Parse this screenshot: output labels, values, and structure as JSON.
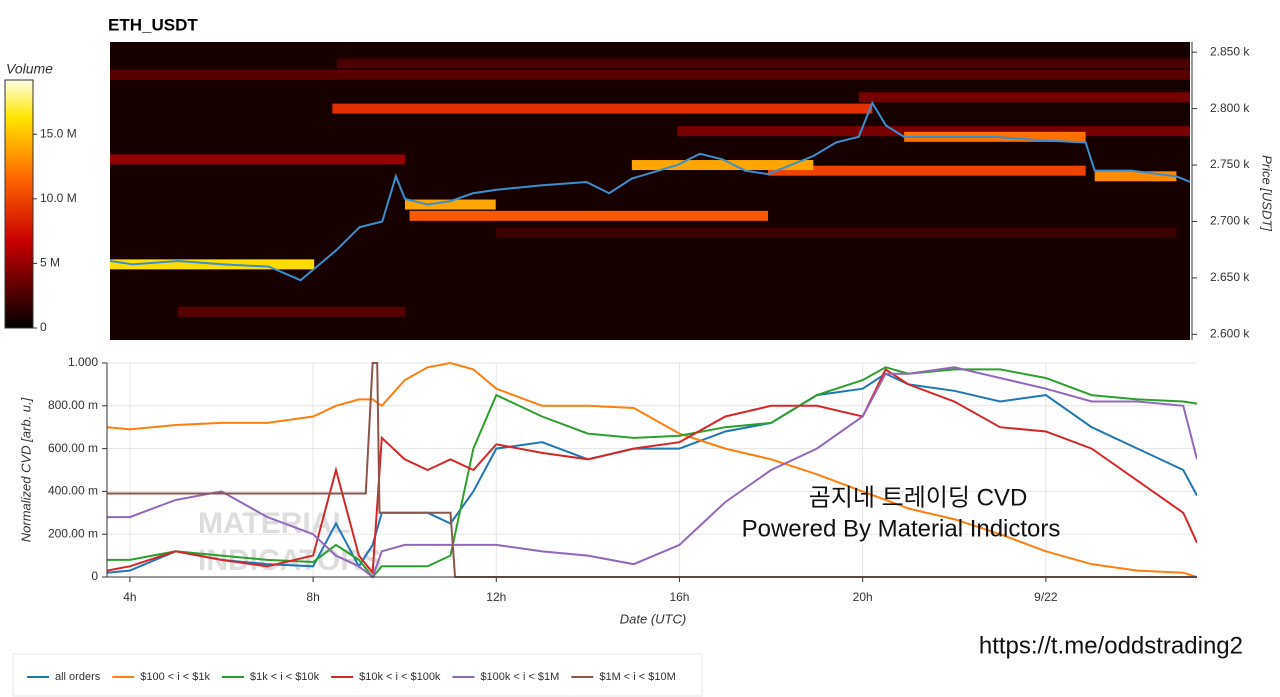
{
  "chart_data": [
    {
      "type": "heatmap",
      "title": "ETH_USDT",
      "y_label": "Price [USDT]",
      "xlim": [
        3.5,
        27.3
      ],
      "ylim": [
        2595,
        2859
      ],
      "yticks": [
        {
          "value": 2600,
          "label": "2.600 k"
        },
        {
          "value": 2650,
          "label": "2.650 k"
        },
        {
          "value": 2700,
          "label": "2.700 k"
        },
        {
          "value": 2750,
          "label": "2.750 k"
        },
        {
          "value": 2800,
          "label": "2.800 k"
        },
        {
          "value": 2850,
          "label": "2.850 k"
        }
      ],
      "colorbar": {
        "title": "Volume",
        "clim": [
          0,
          19.2
        ],
        "ticks": [
          0,
          {
            "value": 5,
            "label": "5 M"
          },
          {
            "value": 10,
            "label": "10.0 M"
          },
          {
            "value": 15,
            "label": "15.0 M"
          }
        ]
      },
      "levels": [
        {
          "price": 2840,
          "start": 8.5,
          "end": 27.3,
          "volume": 2.5
        },
        {
          "price": 2830,
          "start": 3.5,
          "end": 27.3,
          "volume": 3
        },
        {
          "price": 2810,
          "start": 20,
          "end": 27.3,
          "volume": 4
        },
        {
          "price": 2780,
          "start": 16,
          "end": 27.3,
          "volume": 4
        },
        {
          "price": 2755,
          "start": 3.5,
          "end": 10,
          "volume": 5
        },
        {
          "price": 2690,
          "start": 12,
          "end": 27,
          "volume": 2
        },
        {
          "price": 2620,
          "start": 5,
          "end": 10,
          "volume": 3
        },
        {
          "price": 2800,
          "start": 8.4,
          "end": 20.3,
          "volume": 9
        },
        {
          "price": 2745,
          "start": 18,
          "end": 25,
          "volume": 10
        },
        {
          "price": 2705,
          "start": 10.1,
          "end": 18,
          "volume": 11
        },
        {
          "price": 2662,
          "start": 3.5,
          "end": 8,
          "volume": 16
        },
        {
          "price": 2715,
          "start": 10,
          "end": 12,
          "volume": 14
        },
        {
          "price": 2750,
          "start": 15,
          "end": 19,
          "volume": 14
        },
        {
          "price": 2775,
          "start": 21,
          "end": 25,
          "volume": 12
        },
        {
          "price": 2740,
          "start": 25.2,
          "end": 27,
          "volume": 13
        }
      ],
      "price": {
        "color": "#3b8fd0",
        "x": [
          3.5,
          4,
          5,
          6,
          7,
          7.7,
          8,
          8.5,
          9,
          9.5,
          9.8,
          10,
          10.5,
          11,
          11.5,
          12,
          13,
          14,
          14.5,
          15,
          16,
          16.5,
          17,
          17.5,
          18,
          18.5,
          19,
          19.5,
          20,
          20.3,
          20.6,
          21,
          22,
          23,
          24,
          25,
          25.2,
          26,
          27,
          27.3
        ],
        "values": [
          2665,
          2662,
          2665,
          2662,
          2660,
          2648,
          2658,
          2675,
          2695,
          2700,
          2740,
          2720,
          2715,
          2718,
          2725,
          2728,
          2732,
          2735,
          2725,
          2738,
          2750,
          2760,
          2755,
          2745,
          2742,
          2750,
          2758,
          2770,
          2775,
          2805,
          2785,
          2775,
          2775,
          2775,
          2772,
          2770,
          2745,
          2745,
          2740,
          2735
        ]
      }
    },
    {
      "type": "line",
      "x_label": "Date (UTC)",
      "y_label": "Normalized CVD [arb. u.]",
      "xlim": [
        3.5,
        27.3
      ],
      "ylim": [
        0,
        1
      ],
      "xticks": [
        {
          "value": 4,
          "label": "4h"
        },
        {
          "value": 8,
          "label": "8h"
        },
        {
          "value": 12,
          "label": "12h"
        },
        {
          "value": 16,
          "label": "16h"
        },
        {
          "value": 20,
          "label": "20h"
        },
        {
          "value": 24,
          "label": "9/22"
        }
      ],
      "yticks": [
        0,
        {
          "value": 0.2,
          "label": "200.00 m"
        },
        {
          "value": 0.4,
          "label": "400.00 m"
        },
        {
          "value": 0.6,
          "label": "600.00 m"
        },
        {
          "value": 0.8,
          "label": "800.00 m"
        },
        {
          "value": 1,
          "label": "1.000"
        }
      ],
      "grid": true,
      "x": [
        3.5,
        4,
        5,
        6,
        7,
        8,
        8.5,
        9,
        9.3,
        9.5,
        10,
        10.5,
        11,
        11.5,
        12,
        13,
        14,
        15,
        16,
        17,
        18,
        19,
        20,
        20.5,
        21,
        22,
        23,
        24,
        25,
        26,
        27,
        27.3
      ],
      "series": [
        {
          "name": "all orders",
          "color": "#1f77b4",
          "values": [
            0.02,
            0.03,
            0.12,
            0.08,
            0.06,
            0.05,
            0.25,
            0.05,
            0.15,
            0.3,
            0.3,
            0.3,
            0.25,
            0.4,
            0.6,
            0.63,
            0.55,
            0.6,
            0.6,
            0.68,
            0.72,
            0.85,
            0.88,
            0.95,
            0.9,
            0.87,
            0.82,
            0.85,
            0.7,
            0.6,
            0.5,
            0.38
          ]
        },
        {
          "name": "$100 < i < $1k",
          "color": "#ff7f0e",
          "values": [
            0.7,
            0.69,
            0.71,
            0.72,
            0.72,
            0.75,
            0.8,
            0.83,
            0.83,
            0.8,
            0.92,
            0.98,
            1.0,
            0.97,
            0.88,
            0.8,
            0.8,
            0.79,
            0.67,
            0.6,
            0.55,
            0.48,
            0.4,
            0.36,
            0.32,
            0.27,
            0.2,
            0.12,
            0.06,
            0.03,
            0.02,
            0
          ]
        },
        {
          "name": "$1k < i < $10k",
          "color": "#2ca02c",
          "values": [
            0.08,
            0.08,
            0.12,
            0.1,
            0.08,
            0.07,
            0.15,
            0.08,
            0,
            0.05,
            0.05,
            0.05,
            0.1,
            0.6,
            0.85,
            0.75,
            0.67,
            0.65,
            0.66,
            0.7,
            0.72,
            0.85,
            0.92,
            0.98,
            0.95,
            0.97,
            0.97,
            0.93,
            0.85,
            0.83,
            0.82,
            0.81
          ]
        },
        {
          "name": "$10k < i < $100k",
          "color": "#d62728",
          "values": [
            0.03,
            0.05,
            0.12,
            0.08,
            0.05,
            0.1,
            0.5,
            0.1,
            0.02,
            0.65,
            0.55,
            0.5,
            0.55,
            0.5,
            0.62,
            0.58,
            0.55,
            0.6,
            0.63,
            0.75,
            0.8,
            0.8,
            0.75,
            0.97,
            0.9,
            0.82,
            0.7,
            0.68,
            0.6,
            0.45,
            0.3,
            0.16
          ]
        },
        {
          "name": "$100k < i < $1M",
          "color": "#9467bd",
          "values": [
            0.28,
            0.28,
            0.36,
            0.4,
            0.28,
            0.2,
            0.1,
            0.05,
            0,
            0.12,
            0.15,
            0.15,
            0.15,
            0.15,
            0.15,
            0.12,
            0.1,
            0.06,
            0.15,
            0.35,
            0.5,
            0.6,
            0.75,
            0.95,
            0.95,
            0.98,
            0.93,
            0.88,
            0.82,
            0.82,
            0.8,
            0.55
          ]
        },
        {
          "name": "$1M < i < $10M",
          "color": "#8c564b",
          "x": [
            3.5,
            9.15,
            9.3,
            9.4,
            9.45,
            11.0,
            11.1,
            27.3
          ],
          "values": [
            0.39,
            0.39,
            1.0,
            1.0,
            0.3,
            0.3,
            0,
            0
          ]
        }
      ],
      "watermark": [
        "MATERIAL",
        "INDICATORS"
      ],
      "annotations": [
        "곰지네 트레이딩 CVD",
        "Powered By Material Indictors"
      ],
      "note": "https://t.me/oddstrading2"
    }
  ]
}
